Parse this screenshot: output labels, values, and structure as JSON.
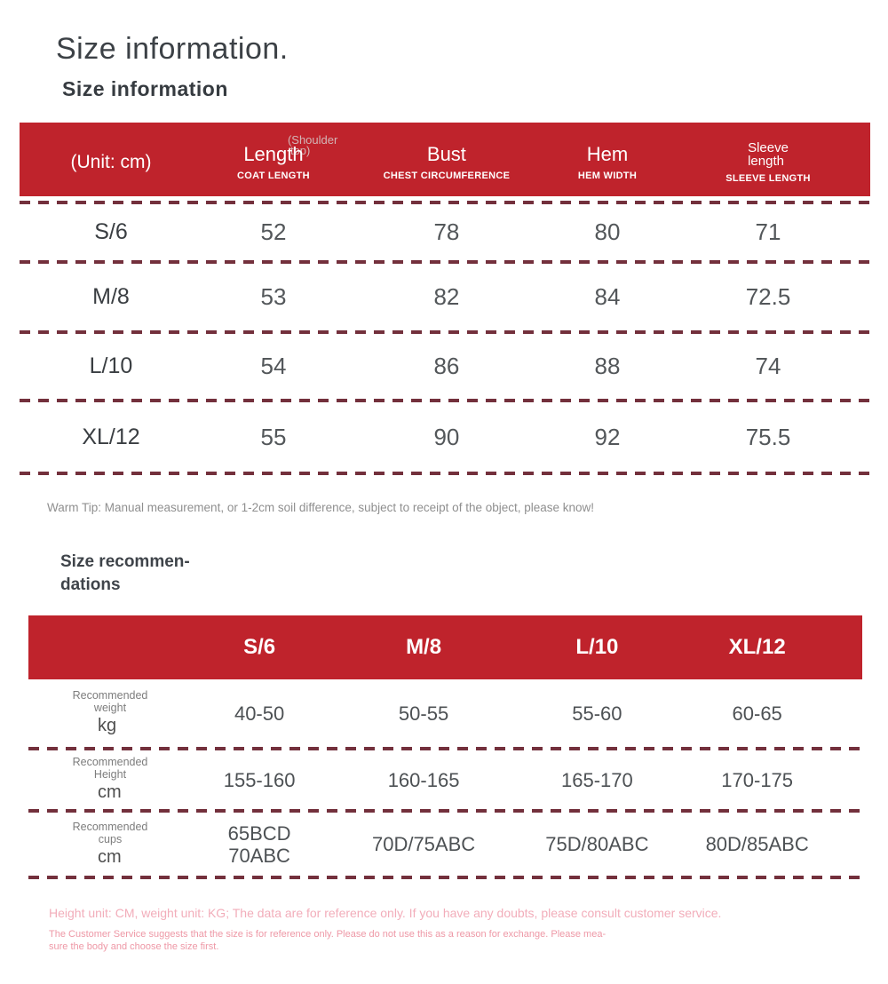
{
  "page": {
    "title": "Size information.",
    "subtitle": "Size information",
    "warm_tip": "Warm Tip: Manual measurement, or 1-2cm soil difference, subject to receipt of the object, please know!",
    "rec_heading_line1": "Size recommen-",
    "rec_heading_line2": "dations"
  },
  "colors": {
    "header_red": "#bf232c",
    "dash_maroon": "#73303c",
    "footer_pink_light": "#f2adba",
    "footer_pink_small": "#ee98a6"
  },
  "size_table": {
    "unit_label": "(Unit: cm)",
    "columns": [
      {
        "main": "Length",
        "overlay_line1": "(Shoulder",
        "overlay_line2": "top)",
        "sub": "COAT LENGTH"
      },
      {
        "main": "Bust",
        "sub": "CHEST CIRCUMFERENCE"
      },
      {
        "main": "Hem",
        "sub": "HEM WIDTH"
      },
      {
        "main_line1": "Sleeve",
        "main_line2": "length",
        "sub": "SLEEVE LENGTH"
      }
    ],
    "rows": [
      {
        "size": "S/6",
        "values": [
          "52",
          "78",
          "80",
          "71"
        ]
      },
      {
        "size": "M/8",
        "values": [
          "53",
          "82",
          "84",
          "72.5"
        ]
      },
      {
        "size": "L/10",
        "values": [
          "54",
          "86",
          "88",
          "74"
        ]
      },
      {
        "size": "XL/12",
        "values": [
          "55",
          "90",
          "92",
          "75.5"
        ]
      }
    ]
  },
  "recommendation_table": {
    "sizes": [
      "S/6",
      "M/8",
      "L/10",
      "XL/12"
    ],
    "rows": [
      {
        "label": "Recommended weight",
        "unit": "kg",
        "values": [
          "40-50",
          "50-55",
          "55-60",
          "60-65"
        ]
      },
      {
        "label": "Recommended Height",
        "unit": "cm",
        "values": [
          "155-160",
          "160-165",
          "165-170",
          "170-175"
        ]
      },
      {
        "label": "Recommended cups",
        "unit": "cm",
        "values": [
          "65BCD\n70ABC",
          "70D/75ABC",
          "75D/80ABC",
          "80D/85ABC"
        ]
      }
    ]
  },
  "footer": {
    "line1": "Height unit: CM, weight unit: KG; The data are for reference only. If you have any doubts, please consult customer service.",
    "line2": "The Customer Service suggests that the size is for reference only. Please do not use this as a reason for exchange. Please mea-",
    "line3": "sure the body and choose the size first."
  }
}
